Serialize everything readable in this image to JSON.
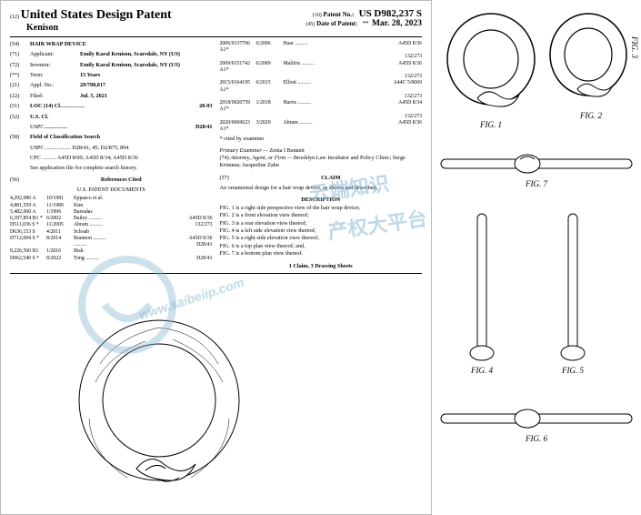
{
  "header": {
    "tag12": "(12)",
    "country_title": "United States Design Patent",
    "applicant_line": "Kenison",
    "tag10": "(10)",
    "patent_no_label": "Patent No.:",
    "patent_no": "US D982,237 S",
    "tag45": "(45)",
    "date_label": "Date of Patent:",
    "date_star": "**",
    "date": "Mar. 28, 2023"
  },
  "left": {
    "f54_tag": "(54)",
    "f54": "HAIR WRAP DEVICE",
    "f71_tag": "(71)",
    "f71_lbl": "Applicant:",
    "f71_val": "Emily Karal Kenison, Scarsdale, NY (US)",
    "f72_tag": "(72)",
    "f72_lbl": "Inventor:",
    "f72_val": "Emily Karal Kenison, Scarsdale, NY (US)",
    "fterm_tag": "(**)",
    "fterm_lbl": "Term:",
    "fterm_val": "15 Years",
    "f21_tag": "(21)",
    "f21_lbl": "Appl. No.:",
    "f21_val": "29/798,017",
    "f22_tag": "(22)",
    "f22_lbl": "Filed:",
    "f22_val": "Jul. 5, 2021",
    "f51_tag": "(51)",
    "f51_lbl": "LOC (14) Cl.",
    "f51_val": "28-03",
    "f52_tag": "(52)",
    "f52_lbl": "U.S. Cl.",
    "f52_uspc_lbl": "USPC",
    "f52_uspc": "D28/41",
    "f58_tag": "(58)",
    "f58_lbl": "Field of Classification Search",
    "f58_uspc": "USPC .................. D28/41, 45; D2/875, 894",
    "f58_cpc": "CPC .......... A45D 8/00; A45D 8/34; A45D 8/36",
    "f58_note": "See application file for complete search history.",
    "f56_tag": "(56)",
    "f56_lbl": "References Cited",
    "uspd_head": "U.S. PATENT DOCUMENTS"
  },
  "refs": [
    {
      "no": "4,292,986 A",
      "date": "10/1981",
      "name": "Eppasco et al.",
      "cls": ""
    },
    {
      "no": "4,881,559 A",
      "date": "11/1989",
      "name": "Kim",
      "cls": ""
    },
    {
      "no": "5,482,060 A",
      "date": "1/1996",
      "name": "Barradas",
      "cls": ""
    },
    {
      "no": "6,397,854 B1 *",
      "date": "6/2002",
      "name": "Bailey",
      "cls": "A45D 8/36"
    },
    {
      "no": "D511,036 S *",
      "date": "11/2005",
      "name": "Abram",
      "cls": "132/273"
    },
    {
      "no": "D636,153 S",
      "date": "4/2011",
      "name": "Schoab",
      "cls": ""
    },
    {
      "no": "D712,094 S *",
      "date": "8/2014",
      "name": "Brannon",
      "cls": "A45D 8/36"
    },
    {
      "no": "",
      "date": "",
      "name": "",
      "cls": "D28/41"
    },
    {
      "no": "9,226,560 B1",
      "date": "1/2016",
      "name": "Bish",
      "cls": ""
    },
    {
      "no": "D962,540 S *",
      "date": "8/2022",
      "name": "Tong",
      "cls": "D28/41"
    }
  ],
  "right": {
    "ref2": [
      {
        "no": "2006/0137706 A1*",
        "date": "6/2006",
        "name": "Haar",
        "cls": "A45D 8/36",
        "cls2": "132/273"
      },
      {
        "no": "2009/0151742 A1*",
        "date": "6/2009",
        "name": "Malifris",
        "cls": "A45D 8/36",
        "cls2": "132/273"
      },
      {
        "no": "2015/0164195 A1*",
        "date": "6/2015",
        "name": "Elliott",
        "cls": "A44C 5/0069",
        "cls2": "132/273"
      },
      {
        "no": "2018/0020759 A1*",
        "date": "1/2018",
        "name": "Harris",
        "cls": "A45D 8/34",
        "cls2": "132/273"
      },
      {
        "no": "2020/0069023 A1*",
        "date": "3/2020",
        "name": "Abram",
        "cls": "A45D 8/36"
      }
    ],
    "cited_note": "* cited by examiner",
    "examiner_lbl": "Primary Examiner —",
    "examiner": "Zenia I Bennett",
    "f74_tag": "(74)",
    "atty_lbl": "Attorney, Agent, or Firm —",
    "atty": "Brooklyn Law Incubator and Policy Clinic; Serge Krimnus; Jacqueline Zahn",
    "f57_tag": "(57)",
    "claim_head": "CLAIM",
    "claim_text": "An ornamental design for a hair wrap device, as shown and described.",
    "desc_head": "DESCRIPTION",
    "desc_lines": [
      "FIG. 1 is a right side perspective view of the hair wrap device;",
      "FIG. 2 is a front elevation view thereof;",
      "FIG. 3 is a rear elevation view thereof;",
      "FIG. 4 is a left side elevation view thereof;",
      "FIG. 5 is a right side elevation view thereof;",
      "FIG. 6 is a top plan view thereof; and,",
      "FIG. 7 is a bottom plan view thereof."
    ],
    "count_line": "1 Claim, 3 Drawing Sheets"
  },
  "figs": {
    "f1": "FIG. 1",
    "f2": "FIG. 2",
    "f3": "FIG. 3",
    "f4": "FIG. 4",
    "f5": "FIG. 5",
    "f6": "FIG. 6",
    "f7": "FIG. 7"
  },
  "watermarks": {
    "zh1": "云端知识",
    "zh2": "产权大平台",
    "url": "www.saibeiip.com"
  },
  "colors": {
    "ink": "#000000",
    "wm": "#7fb3cf"
  }
}
